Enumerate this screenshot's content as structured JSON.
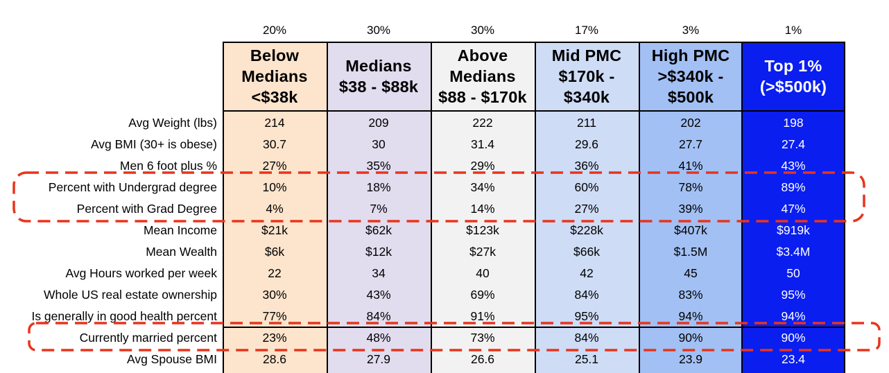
{
  "chart_data": {
    "type": "table",
    "shares": [
      "20%",
      "30%",
      "30%",
      "17%",
      "3%",
      "1%"
    ],
    "columns": [
      {
        "lines": [
          "Below",
          "Medians",
          "<$38k"
        ],
        "fill": "#fde4cc"
      },
      {
        "lines": [
          "Medians",
          "$38 - $88k"
        ],
        "fill": "#e2dcef"
      },
      {
        "lines": [
          "Above",
          "Medians",
          "$88 - $170k"
        ],
        "fill": "#f2f2f2"
      },
      {
        "lines": [
          "Mid PMC",
          "$170k -",
          "$340k"
        ],
        "fill": "#cedcf6"
      },
      {
        "lines": [
          "High PMC",
          ">$340k -",
          "$500k"
        ],
        "fill": "#a2c0f4"
      },
      {
        "lines": [
          "Top 1%",
          "(>$500k)"
        ],
        "fill": "#0a1ef0",
        "text_color": "#ffffff"
      }
    ],
    "rows": [
      {
        "label": "Avg Weight (lbs)",
        "values": [
          "214",
          "209",
          "222",
          "211",
          "202",
          "198"
        ]
      },
      {
        "label": "Avg BMI (30+ is obese)",
        "values": [
          "30.7",
          "30",
          "31.4",
          "29.6",
          "27.7",
          "27.4"
        ]
      },
      {
        "label": "Men 6 foot plus %",
        "values": [
          "27%",
          "35%",
          "29%",
          "36%",
          "41%",
          "43%"
        ]
      },
      {
        "label": "Percent with Undergrad degree",
        "values": [
          "10%",
          "18%",
          "34%",
          "60%",
          "78%",
          "89%"
        ],
        "highlight": true
      },
      {
        "label": "Percent with Grad Degree",
        "values": [
          "4%",
          "7%",
          "14%",
          "27%",
          "39%",
          "47%"
        ],
        "highlight": true
      },
      {
        "label": "Mean Income",
        "values": [
          "$21k",
          "$62k",
          "$123k",
          "$228k",
          "$407k",
          "$919k"
        ]
      },
      {
        "label": "Mean Wealth",
        "values": [
          "$6k",
          "$12k",
          "$27k",
          "$66k",
          "$1.5M",
          "$3.4M"
        ]
      },
      {
        "label": "Avg Hours worked per week",
        "values": [
          "22",
          "34",
          "40",
          "42",
          "45",
          "50"
        ]
      },
      {
        "label": "Whole US real estate ownership",
        "values": [
          "30%",
          "43%",
          "69%",
          "84%",
          "83%",
          "95%"
        ]
      },
      {
        "label": "Is generally in good health percent",
        "values": [
          "77%",
          "84%",
          "91%",
          "95%",
          "94%",
          "94%"
        ]
      },
      {
        "label": "Currently married percent",
        "values": [
          "23%",
          "48%",
          "73%",
          "84%",
          "90%",
          "90%"
        ],
        "highlight": true
      },
      {
        "label": "Avg Spouse BMI",
        "values": [
          "28.6",
          "27.9",
          "26.6",
          "25.1",
          "23.9",
          "23.4"
        ]
      }
    ],
    "highlight_color": "#e8341c"
  }
}
